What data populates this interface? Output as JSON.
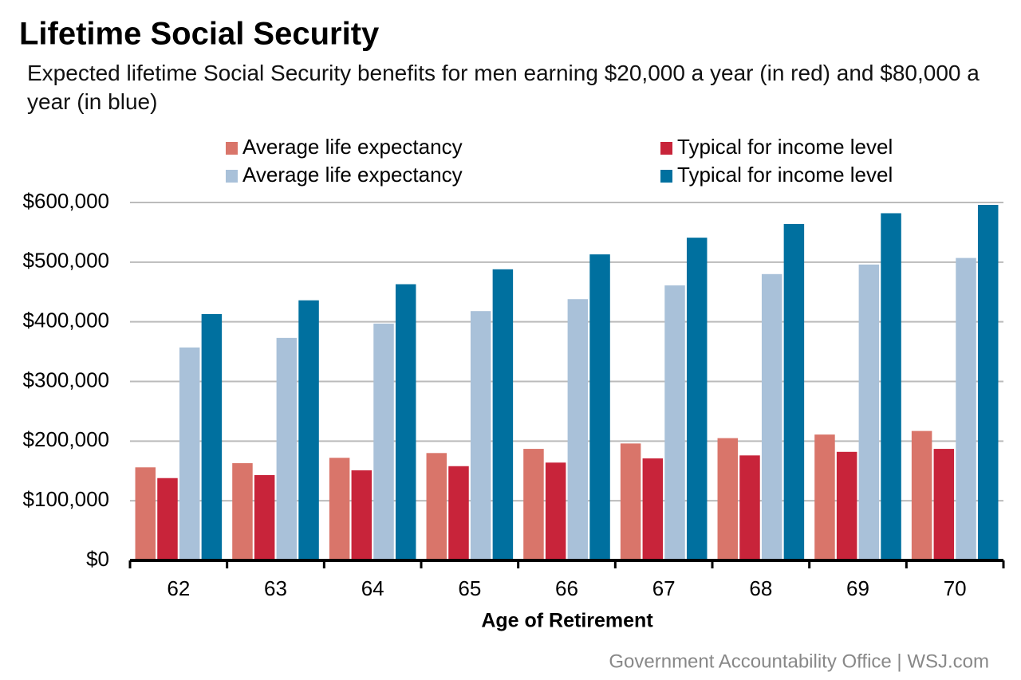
{
  "chart_data": {
    "type": "bar",
    "title": "Lifetime Social Security",
    "subtitle": "Expected lifetime Social Security benefits for men earning $20,000 a year (in red) and $80,000 a year (in blue)",
    "x_label": "Age of Retirement",
    "source": "Government Accountability Office  |  WSJ.com",
    "categories": [
      "62",
      "63",
      "64",
      "65",
      "66",
      "67",
      "68",
      "69",
      "70"
    ],
    "series": [
      {
        "name": "Average life expectancy",
        "color": "#d9756a",
        "values": [
          156000,
          163000,
          172000,
          180000,
          187000,
          196000,
          205000,
          211000,
          217000
        ]
      },
      {
        "name": "Typical for income level",
        "color": "#c8243a",
        "values": [
          138000,
          143000,
          151000,
          158000,
          164000,
          171000,
          176000,
          182000,
          187000
        ]
      },
      {
        "name": "Average life expectancy",
        "color": "#a9c1d9",
        "values": [
          357000,
          373000,
          397000,
          418000,
          438000,
          461000,
          480000,
          496000,
          507000
        ]
      },
      {
        "name": "Typical for income level",
        "color": "#00709f",
        "values": [
          413000,
          436000,
          463000,
          488000,
          513000,
          541000,
          564000,
          582000,
          596000
        ]
      }
    ],
    "ylim": [
      0,
      600000
    ],
    "yticks": [
      {
        "value": 0,
        "label": "$0"
      },
      {
        "value": 100000,
        "label": "$100,000"
      },
      {
        "value": 200000,
        "label": "$200,000"
      },
      {
        "value": 300000,
        "label": "$300,000"
      },
      {
        "value": 400000,
        "label": "$400,000"
      },
      {
        "value": 500000,
        "label": "$500,000"
      },
      {
        "value": 600000,
        "label": "$600,000"
      }
    ],
    "grid": true
  }
}
